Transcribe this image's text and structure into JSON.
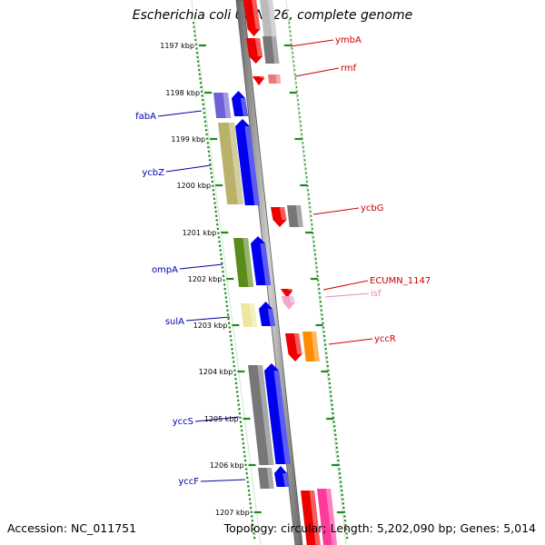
{
  "title": "Escherichia coli UMN026, complete genome",
  "accession": "Accession: NC_011751",
  "topology": "Topology: circular; Length: 5,202,090 bp; Genes: 5,014",
  "ticks": [
    {
      "label": "1197 kbp"
    },
    {
      "label": "1198 kbp"
    },
    {
      "label": "1199 kbp"
    },
    {
      "label": "1200 kbp"
    },
    {
      "label": "1201 kbp"
    },
    {
      "label": "1202 kbp"
    },
    {
      "label": "1203 kbp"
    },
    {
      "label": "1204 kbp"
    },
    {
      "label": "1205 kbp"
    },
    {
      "label": "1206 kbp"
    },
    {
      "label": "1207 kbp"
    }
  ],
  "genes_left": [
    {
      "name": "fabA",
      "color": "#0000aa"
    },
    {
      "name": "ycbZ",
      "color": "#0000aa"
    },
    {
      "name": "ompA",
      "color": "#0000aa"
    },
    {
      "name": "sulA",
      "color": "#0000aa"
    },
    {
      "name": "yccS",
      "color": "#0000aa"
    },
    {
      "name": "yccF",
      "color": "#0000aa"
    }
  ],
  "genes_right": [
    {
      "name": "ymbA",
      "color": "#cc0000"
    },
    {
      "name": "rmf",
      "color": "#cc0000"
    },
    {
      "name": "ycbG",
      "color": "#cc0000"
    },
    {
      "name": "ECUMN_1147",
      "color": "#cc0000"
    },
    {
      "name": "isf",
      "color": "#ee88aa"
    },
    {
      "name": "yccR",
      "color": "#cc0000"
    }
  ],
  "colors": {
    "tick": "#1f8a1f",
    "forward_gene": "#0000ee",
    "reverse_gene": "#ee0000",
    "grey_feature": "#777777",
    "backbone": "#888888"
  }
}
